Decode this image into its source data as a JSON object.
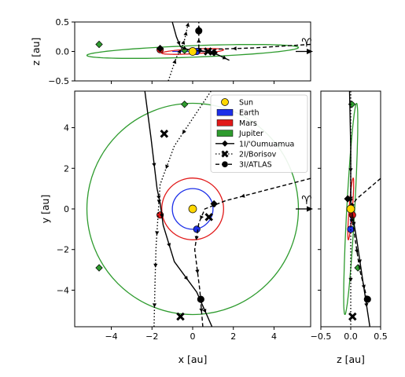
{
  "chart_data": {
    "type": "scatter",
    "description_panels": [
      "top: x-z projection",
      "main: x-y projection",
      "right: z-y projection"
    ],
    "colors": {
      "sun": "#ffd700",
      "earth": "#1c2fe8",
      "mars": "#e11919",
      "jupiter": "#2e9b2e",
      "trajectory": "#000000"
    },
    "axes": {
      "main": {
        "xlabel": "x [au]",
        "ylabel": "y [au]",
        "xlim": [
          -5.8,
          5.8
        ],
        "ylim": [
          -5.8,
          5.8
        ],
        "xticks": [
          "−4",
          "−2",
          "0",
          "2",
          "4"
        ],
        "yticks": [
          "−4",
          "−2",
          "0",
          "2",
          "4"
        ],
        "xtick_values": [
          -4,
          -2,
          0,
          2,
          4
        ],
        "ytick_values": [
          -4,
          -2,
          0,
          2,
          4
        ]
      },
      "top": {
        "ylabel": "z [au]",
        "ylim": [
          -0.5,
          0.5
        ],
        "yticks": [
          "−0.5",
          "0.0",
          "0.5"
        ],
        "ytick_values": [
          -0.5,
          0.0,
          0.5
        ]
      },
      "right": {
        "xlabel": "z [au]",
        "xlim": [
          -0.5,
          0.5
        ],
        "xticks": [
          "−0.5",
          "0.0",
          "0.5"
        ],
        "xtick_values": [
          -0.5,
          0.0,
          0.5
        ]
      }
    },
    "vernal_equinox_symbol": "♈",
    "legend": {
      "placement": "top-right",
      "entries": [
        {
          "label": "Sun",
          "kind": "circle",
          "color": "#ffd700"
        },
        {
          "label": "Earth",
          "kind": "patch",
          "color": "#1c2fe8"
        },
        {
          "label": "Mars",
          "kind": "patch",
          "color": "#e11919"
        },
        {
          "label": "Jupiter",
          "kind": "patch",
          "color": "#2e9b2e"
        },
        {
          "label": "1I/'Oumuamua",
          "kind": "line-diamond",
          "dash": "solid"
        },
        {
          "label": "2I/Borisov",
          "kind": "line-x",
          "dash": "dotted"
        },
        {
          "label": "3I/ATLAS",
          "kind": "line-circle",
          "dash": "dashed"
        }
      ]
    },
    "orbits": [
      {
        "name": "Earth",
        "a": 1.0,
        "color": "#1c2fe8",
        "incl_deg": 0
      },
      {
        "name": "Mars",
        "a": 1.52,
        "color": "#e11919",
        "incl_deg": 1.85
      },
      {
        "name": "Jupiter",
        "a": 5.2,
        "color": "#2e9b2e",
        "incl_deg": 1.3
      }
    ],
    "planet_positions": [
      {
        "body": "Earth",
        "x": 0.2,
        "y": -1.0,
        "z": 0.0
      },
      {
        "body": "Mars",
        "x": -1.6,
        "y": -0.3,
        "z": 0.03
      },
      {
        "body": "Jupiter",
        "x": -0.4,
        "y": 5.15,
        "z": 0.02
      },
      {
        "body": "Jupiter",
        "x": -4.6,
        "y": -2.9,
        "z": 0.12
      }
    ],
    "sun": {
      "x": 0.0,
      "y": 0.0,
      "z": 0.0
    },
    "trajectories": [
      {
        "name": "1I/'Oumuamua",
        "style": "solid",
        "marker": "diamond",
        "xy": [
          [
            -2.35,
            5.8
          ],
          [
            -2.05,
            3.5
          ],
          [
            -1.75,
            1.0
          ],
          [
            -1.6,
            0.3
          ],
          [
            -1.45,
            -0.8
          ],
          [
            -0.9,
            -2.6
          ],
          [
            0.2,
            -4.1
          ],
          [
            0.95,
            -5.8
          ]
        ],
        "xz": [
          [
            -1.0,
            0.5
          ],
          [
            -0.8,
            0.25
          ],
          [
            -0.6,
            0.08
          ],
          [
            -0.3,
            0.04
          ],
          [
            0.0,
            0.02
          ],
          [
            0.6,
            0.0
          ],
          [
            1.2,
            -0.05
          ],
          [
            1.8,
            -0.15
          ]
        ],
        "zy": [
          [
            -0.02,
            5.8
          ],
          [
            0.0,
            3.0
          ],
          [
            0.0,
            1.0
          ],
          [
            0.0,
            0.2
          ],
          [
            0.1,
            -1.5
          ],
          [
            0.2,
            -3.5
          ],
          [
            0.32,
            -5.8
          ]
        ],
        "markers_xy": [
          [
            1.05,
            0.25
          ]
        ],
        "markers_xz": [
          [
            -1.6,
            0.05
          ],
          [
            1.05,
            -0.02
          ]
        ],
        "markers_zy": [
          [
            -0.05,
            0.5
          ]
        ]
      },
      {
        "name": "2I/Borisov",
        "style": "dotted",
        "marker": "x",
        "xy": [
          [
            0.9,
            5.8
          ],
          [
            0.1,
            4.6
          ],
          [
            -0.9,
            3.1
          ],
          [
            -1.6,
            1.2
          ],
          [
            -1.7,
            -0.3
          ],
          [
            -1.8,
            -1.9
          ],
          [
            -1.85,
            -3.5
          ],
          [
            -1.9,
            -5.8
          ]
        ],
        "xz": [
          [
            -1.2,
            -0.5
          ],
          [
            -1.0,
            -0.3
          ],
          [
            -0.8,
            -0.1
          ],
          [
            -0.55,
            0.05
          ],
          [
            -0.4,
            0.2
          ],
          [
            -0.3,
            0.35
          ],
          [
            -0.2,
            0.5
          ]
        ],
        "zy": [
          [
            0.0,
            5.8
          ],
          [
            0.0,
            2.0
          ],
          [
            0.0,
            -1.0
          ],
          [
            0.0,
            -5.8
          ]
        ],
        "markers_xy": [
          [
            0.8,
            -0.4
          ],
          [
            -1.4,
            3.7
          ],
          [
            -0.6,
            -5.3
          ]
        ],
        "markers_xz": [
          [
            0.75,
            0.0
          ]
        ],
        "markers_zy": [
          [
            0.03,
            -5.3
          ]
        ]
      },
      {
        "name": "3I/ATLAS",
        "style": "dashed",
        "marker": "circle",
        "xy": [
          [
            5.8,
            1.5
          ],
          [
            3.5,
            0.9
          ],
          [
            1.6,
            0.4
          ],
          [
            0.6,
            0.0
          ],
          [
            0.3,
            -0.7
          ],
          [
            0.1,
            -2.0
          ],
          [
            0.35,
            -4.0
          ],
          [
            0.5,
            -5.8
          ]
        ],
        "xz": [
          [
            5.8,
            0.12
          ],
          [
            3.0,
            0.06
          ],
          [
            1.3,
            0.04
          ],
          [
            0.5,
            0.0
          ],
          [
            0.3,
            0.05
          ],
          [
            0.3,
            0.25
          ],
          [
            0.3,
            0.5
          ]
        ],
        "zy": [
          [
            0.5,
            1.5
          ],
          [
            0.1,
            0.5
          ],
          [
            -0.02,
            0.0
          ],
          [
            0.05,
            -1.0
          ],
          [
            0.15,
            -3.0
          ],
          [
            0.28,
            -4.5
          ]
        ],
        "markers_xy": [
          [
            0.4,
            -4.45
          ]
        ],
        "markers_xz": [
          [
            0.3,
            0.35
          ]
        ],
        "markers_zy": [
          [
            0.28,
            -4.45
          ]
        ]
      }
    ]
  }
}
